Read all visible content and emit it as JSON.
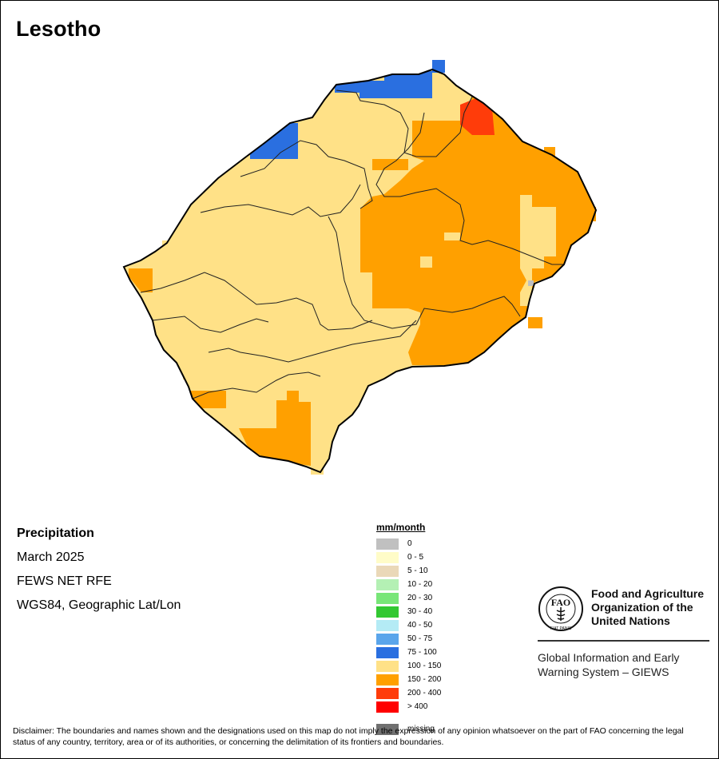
{
  "title": "Lesotho",
  "map_info": {
    "variable": "Precipitation",
    "period": "March 2025",
    "source": "FEWS NET RFE",
    "projection": "WGS84, Geographic Lat/Lon"
  },
  "legend": {
    "unit": "mm/month",
    "classes": [
      {
        "label": "0",
        "color": "#c0c0c0"
      },
      {
        "label": "0 - 5",
        "color": "#fffcc8"
      },
      {
        "label": "5 - 10",
        "color": "#ead8b8"
      },
      {
        "label": "10 - 20",
        "color": "#b4f0b4"
      },
      {
        "label": "20 - 30",
        "color": "#78e678"
      },
      {
        "label": "30 - 40",
        "color": "#32c832"
      },
      {
        "label": "40 - 50",
        "color": "#b4ebf5"
      },
      {
        "label": "50 - 75",
        "color": "#5aa5eb"
      },
      {
        "label": "75 - 100",
        "color": "#2a6fe0"
      },
      {
        "label": "100 - 150",
        "color": "#ffe187"
      },
      {
        "label": "150 - 200",
        "color": "#ffa000"
      },
      {
        "label": "200 - 400",
        "color": "#ff3c0a"
      },
      {
        "label": "> 400",
        "color": "#ff0000"
      }
    ],
    "missing": {
      "label": "missing",
      "color": "#707070"
    }
  },
  "organization": {
    "name_line1": "Food and Agriculture",
    "name_line2": "Organization of the",
    "name_line3": "United Nations",
    "logo_text": "FAO",
    "logo_motto": "FIAT PANIS",
    "system_line1": "Global Information and Early",
    "system_line2": "Warning System – GIEWS"
  },
  "disclaimer": "Disclaimer: The boundaries and names shown and the designations used on this map do not imply the expression of any opinion whatsoever on the part of FAO concerning the legal status of any country, territory, area or of its authorities, or concerning the delimitation of its frontiers and boundaries."
}
